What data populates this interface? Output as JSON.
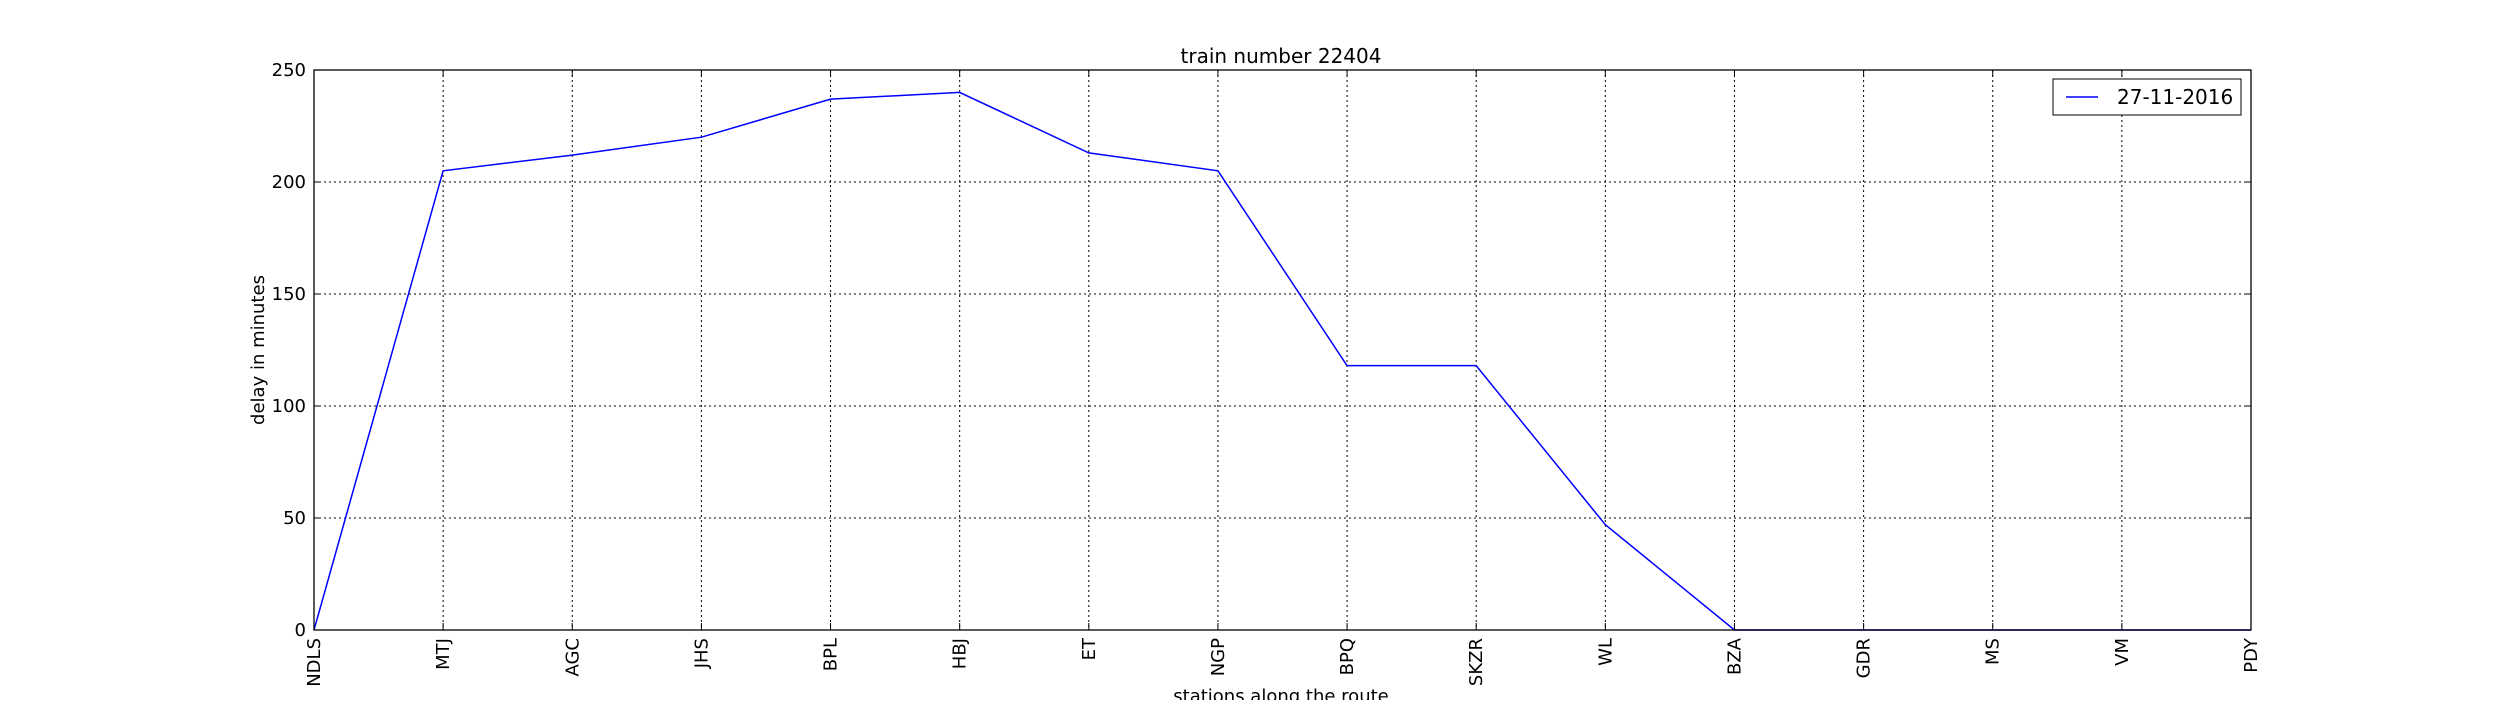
{
  "chart_data": {
    "type": "line",
    "title": "train number 22404",
    "xlabel": "stations along the route",
    "ylabel": "delay in minutes",
    "categories": [
      "NDLS",
      "MTJ",
      "AGC",
      "JHS",
      "BPL",
      "HBJ",
      "ET",
      "NGP",
      "BPQ",
      "SKZR",
      "WL",
      "BZA",
      "GDR",
      "MS",
      "VM",
      "PDY"
    ],
    "series": [
      {
        "name": "27-11-2016",
        "color": "#0000ff",
        "values": [
          0,
          205,
          212,
          220,
          237,
          240,
          213,
          205,
          118,
          118,
          47,
          0,
          0,
          0,
          0,
          0
        ]
      }
    ],
    "ylim": [
      0,
      250
    ],
    "yticks": [
      0,
      50,
      100,
      150,
      200,
      250
    ],
    "grid": true,
    "legend_position": "top-right"
  }
}
